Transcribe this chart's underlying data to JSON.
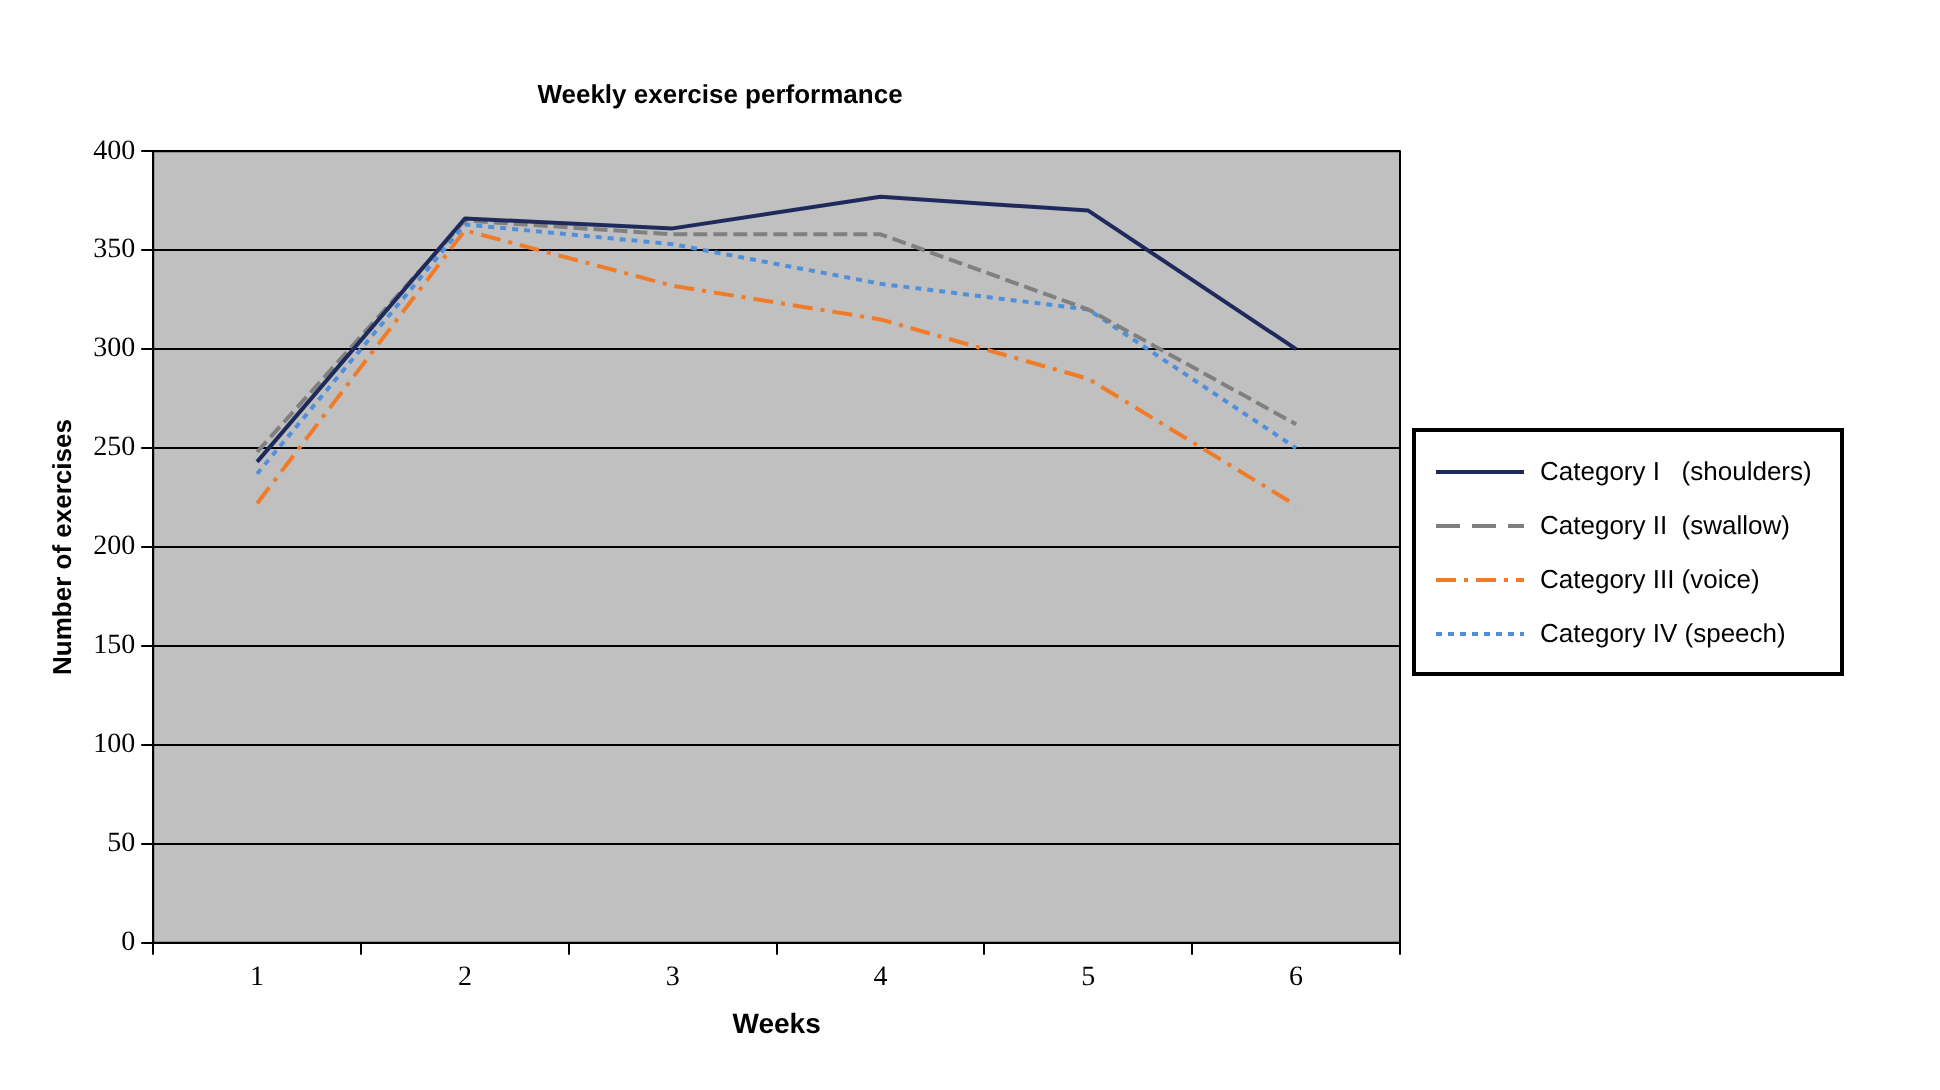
{
  "chart_data": {
    "type": "line",
    "title": "Weekly exercise performance",
    "xlabel": "Weeks",
    "ylabel": "Number of exercises",
    "categories": [
      "1",
      "2",
      "3",
      "4",
      "5",
      "6"
    ],
    "series": [
      {
        "name": "Category I   (shoulders)",
        "color": "#1f2a5c",
        "line_style": "solid",
        "values": [
          243,
          366,
          361,
          377,
          370,
          300
        ]
      },
      {
        "name": "Category II  (swallow)",
        "color": "#808080",
        "line_style": "dashed",
        "values": [
          248,
          365,
          358,
          358,
          320,
          262
        ]
      },
      {
        "name": "Category III (voice)",
        "color": "#f07c2a",
        "line_style": "dashdot",
        "values": [
          222,
          360,
          332,
          315,
          285,
          221
        ]
      },
      {
        "name": "Category IV (speech)",
        "color": "#4f8fdb",
        "line_style": "dotted",
        "values": [
          237,
          363,
          353,
          333,
          320,
          250
        ]
      }
    ],
    "ylim": [
      0,
      400
    ],
    "yticks": [
      0,
      50,
      100,
      150,
      200,
      250,
      300,
      350,
      400
    ],
    "grid": "y",
    "legend": "right",
    "marker": "none"
  }
}
